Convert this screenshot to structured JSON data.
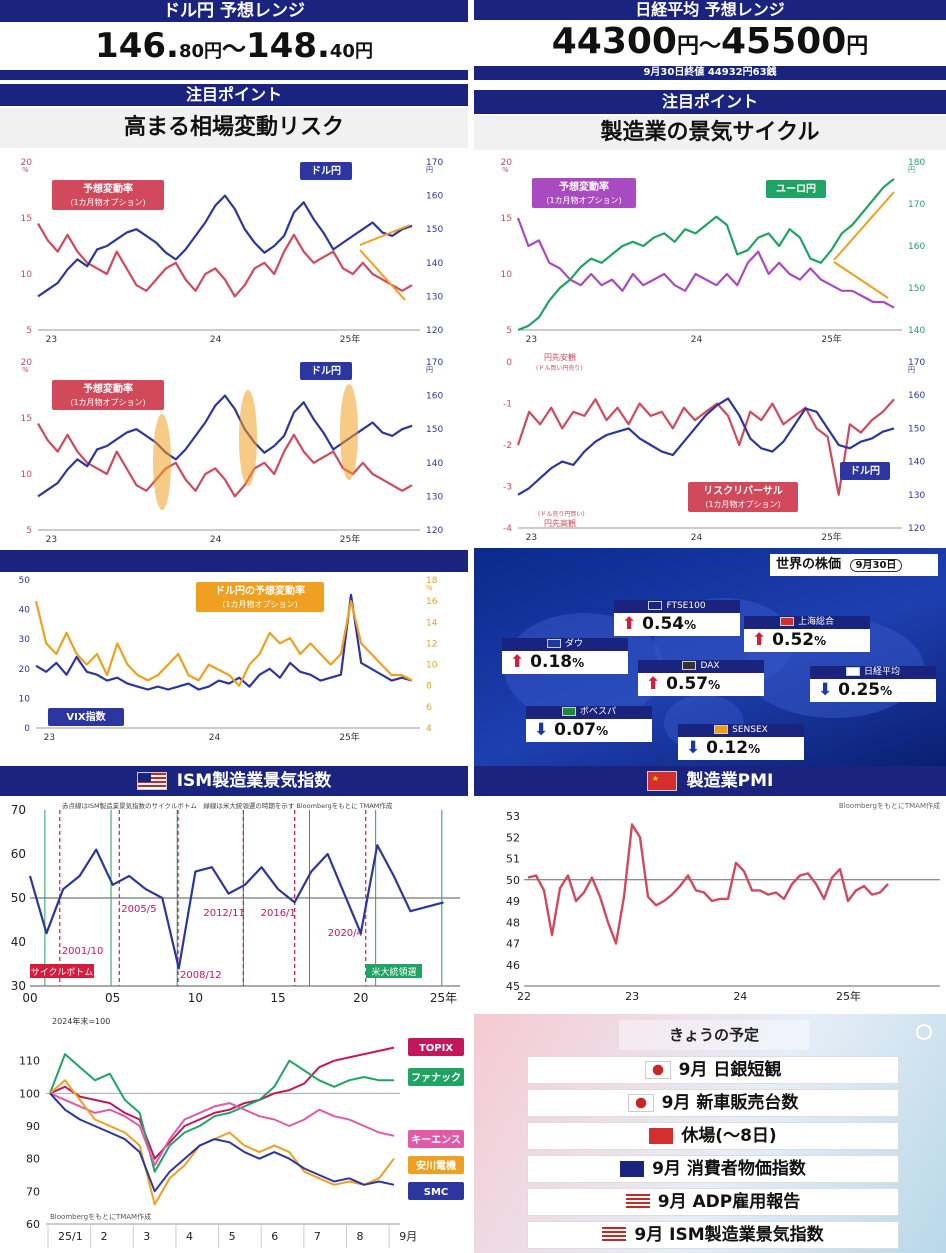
{
  "usdjpy_header": {
    "title": "ドル円 予想レンジ",
    "range_a": "146.",
    "range_a_small": "80円",
    "sep": "～",
    "range_b": "148.",
    "range_b_small": "40円",
    "point_label": "注目ポイント",
    "point": "高まる相場変動リスク"
  },
  "nikkei_header": {
    "title": "日経平均 予想レンジ",
    "range": "44300",
    "range_unit": "円～",
    "range2": "45500",
    "range2_unit": "円",
    "close_note": "9月30日終値 44932円63銭",
    "point_label": "注目ポイント",
    "point": "製造業の景気サイクル"
  },
  "colors": {
    "navy": "#1a237e",
    "red": "#d1495b",
    "blue": "#2b36a0",
    "green": "#1fa463",
    "purple": "#a84bc0",
    "orange": "#f0a020"
  },
  "chart_data": [
    {
      "type": "line",
      "id": "usdjpy_vol_1",
      "x_ticks": [
        "23",
        "24",
        "25年"
      ],
      "ylim_left": [
        5,
        20
      ],
      "left_ticks": [
        "5",
        "10",
        "15",
        "20"
      ],
      "left_unit": "%",
      "ylim_right": [
        120,
        170
      ],
      "right_ticks": [
        "120",
        "130",
        "140",
        "150",
        "160",
        "170"
      ],
      "right_unit": "円",
      "labels": {
        "red": "予想変動率",
        "red_sub": "(1カ月物オプション)",
        "blue": "ドル円"
      },
      "series": [
        {
          "name": "予想変動率",
          "axis": "left",
          "values": [
            14.5,
            13,
            12,
            13.5,
            12,
            11,
            10.5,
            10,
            12,
            10.5,
            9,
            8.5,
            9.5,
            10.5,
            11,
            9.5,
            8.5,
            10,
            10.5,
            9.5,
            8,
            9,
            10.5,
            11,
            10,
            12,
            13.5,
            12,
            11,
            11.5,
            12,
            10.5,
            10,
            11,
            10,
            9.5,
            9,
            8.5,
            9
          ]
        },
        {
          "name": "ドル円",
          "axis": "right",
          "values": [
            130,
            132,
            134,
            138,
            141,
            139,
            144,
            145,
            147,
            149,
            150,
            148,
            146,
            143,
            141,
            144,
            148,
            152,
            157,
            160,
            156,
            150,
            146,
            143,
            145,
            148,
            155,
            158,
            153,
            149,
            144,
            146,
            148,
            150,
            152,
            149,
            148,
            150,
            151
          ]
        }
      ]
    },
    {
      "type": "line",
      "id": "usdjpy_vol_2",
      "x_ticks": [
        "23",
        "24",
        "25年"
      ],
      "ylim_left": [
        5,
        20
      ],
      "left_ticks": [
        "5",
        "10",
        "15",
        "20"
      ],
      "left_unit": "%",
      "ylim_right": [
        120,
        170
      ],
      "right_ticks": [
        "120",
        "130",
        "140",
        "150",
        "160",
        "170"
      ],
      "right_unit": "円",
      "labels": {
        "red": "予想変動率",
        "red_sub": "(1カ月物オプション)",
        "blue": "ドル円"
      },
      "series": [
        {
          "name": "予想変動率",
          "axis": "left",
          "values": [
            14.5,
            13,
            12,
            13.5,
            12,
            11,
            10.5,
            10,
            12,
            10.5,
            9,
            8.5,
            9.5,
            10.5,
            11,
            9.5,
            8.5,
            10,
            10.5,
            9.5,
            8,
            9,
            10.5,
            11,
            10,
            12,
            13.5,
            12,
            11,
            11.5,
            12,
            10.5,
            10,
            11,
            10,
            9.5,
            9,
            8.5,
            9
          ]
        },
        {
          "name": "ドル円",
          "axis": "right",
          "values": [
            130,
            132,
            134,
            138,
            141,
            139,
            144,
            145,
            147,
            149,
            150,
            148,
            146,
            143,
            141,
            144,
            148,
            152,
            157,
            160,
            156,
            150,
            146,
            143,
            145,
            148,
            155,
            158,
            153,
            149,
            144,
            146,
            148,
            150,
            152,
            149,
            148,
            150,
            151
          ]
        }
      ]
    },
    {
      "type": "line",
      "id": "eurjpy_vol",
      "x_ticks": [
        "23",
        "24",
        "25年"
      ],
      "ylim_left": [
        5,
        20
      ],
      "left_ticks": [
        "5",
        "10",
        "15",
        "20"
      ],
      "left_unit": "%",
      "ylim_right": [
        140,
        180
      ],
      "right_ticks": [
        "140",
        "150",
        "160",
        "170",
        "180"
      ],
      "right_unit": "円",
      "labels": {
        "purple": "予想変動率",
        "purple_sub": "(1カ月物オプション)",
        "green": "ユーロ円"
      },
      "series": [
        {
          "name": "予想変動率",
          "axis": "left",
          "values": [
            15,
            12.5,
            13,
            11,
            10.5,
            9.5,
            9,
            10,
            9,
            9.5,
            8.5,
            10,
            9,
            9.5,
            10,
            9,
            8.5,
            10,
            9.5,
            9,
            10,
            9,
            11,
            12,
            10,
            11,
            10,
            9.5,
            10.5,
            9.5,
            9,
            8.5,
            8.5,
            8,
            7.5,
            7.5,
            7
          ]
        },
        {
          "name": "ユーロ円",
          "axis": "right",
          "values": [
            140,
            141,
            143,
            147,
            150,
            152,
            155,
            157,
            156,
            158,
            160,
            161,
            160,
            162,
            163,
            161,
            164,
            163,
            165,
            167,
            165,
            158,
            159,
            162,
            163,
            160,
            164,
            162,
            157,
            156,
            159,
            163,
            165,
            168,
            171,
            174,
            176
          ]
        }
      ]
    },
    {
      "type": "line",
      "id": "risk_reversal",
      "x_ticks": [
        "23",
        "24",
        "25年"
      ],
      "ylim_left": [
        -4,
        0
      ],
      "left_ticks": [
        "-4",
        "-3",
        "-2",
        "-1",
        "0"
      ],
      "ylim_right": [
        120,
        170
      ],
      "right_ticks": [
        "120",
        "130",
        "140",
        "150",
        "160",
        "170"
      ],
      "right_unit": "円",
      "top_note": "円先安観",
      "top_note_sub": "(ドル買い円売り)",
      "bottom_note": "円先高観",
      "bottom_note_sub": "(ドル売り円買い)",
      "labels": {
        "red": "リスクリバーサル",
        "red_sub": "(1カ月物オプション)",
        "blue": "ドル円"
      },
      "series": [
        {
          "name": "リスクリバーサル",
          "axis": "left",
          "values": [
            -2,
            -1.2,
            -1.5,
            -1.1,
            -1.6,
            -1.2,
            -1.3,
            -0.9,
            -1.4,
            -1.1,
            -1.5,
            -1.0,
            -1.3,
            -1.2,
            -1.6,
            -1.1,
            -1.4,
            -1.2,
            -1.0,
            -1.3,
            -2.0,
            -1.2,
            -1.4,
            -1.0,
            -1.5,
            -1.3,
            -1.1,
            -1.6,
            -1.8,
            -3.2,
            -1.5,
            -1.7,
            -1.4,
            -1.2,
            -0.9
          ]
        },
        {
          "name": "ドル円",
          "axis": "right",
          "values": [
            130,
            132,
            135,
            138,
            140,
            139,
            143,
            146,
            148,
            149,
            150,
            147,
            145,
            143,
            142,
            146,
            150,
            154,
            157,
            159,
            154,
            147,
            144,
            143,
            146,
            151,
            156,
            155,
            150,
            145,
            144,
            146,
            147,
            149,
            150
          ]
        }
      ]
    },
    {
      "type": "line",
      "id": "vix_vs_usdjpy",
      "x_ticks": [
        "23",
        "24",
        "25年"
      ],
      "ylim_left": [
        0,
        50
      ],
      "left_ticks": [
        "0",
        "10",
        "20",
        "30",
        "40",
        "50"
      ],
      "ylim_right": [
        4,
        18
      ],
      "right_ticks": [
        "4",
        "6",
        "8",
        "10",
        "12",
        "14",
        "16",
        "18"
      ],
      "right_unit": "%",
      "labels": {
        "orange": "ドル円の予想変動率",
        "orange_sub": "(1カ月物オプション)",
        "blue": "VIX指数"
      },
      "series": [
        {
          "name": "VIX指数",
          "axis": "left",
          "values": [
            21,
            19,
            22,
            18,
            24,
            19,
            18,
            16,
            17,
            15,
            14,
            13,
            14,
            13,
            14,
            15,
            13,
            14,
            16,
            15,
            17,
            14,
            18,
            20,
            17,
            22,
            19,
            18,
            16,
            17,
            18,
            45,
            22,
            20,
            18,
            16,
            17,
            16
          ]
        },
        {
          "name": "ドル円の予想変動率",
          "axis": "right",
          "values": [
            16,
            12,
            11,
            13,
            11,
            10,
            11,
            9,
            12,
            10,
            9,
            8.5,
            9,
            10,
            11,
            9,
            8.5,
            10,
            9.5,
            9,
            8,
            10,
            11,
            13,
            12,
            12.5,
            11,
            12,
            11,
            10,
            11,
            16,
            12,
            11,
            10,
            9,
            9,
            8.5
          ]
        }
      ]
    },
    {
      "type": "line",
      "id": "ism_pmi",
      "title": "ISM製造業景気指数",
      "note": "赤点線はISM製造業景気指数のサイクルボトム　緑線は米大統領選の時期を示す Bloombergをもとに TMAM作成",
      "x_ticks": [
        "00",
        "05",
        "10",
        "15",
        "20",
        "25年"
      ],
      "ylim": [
        30,
        70
      ],
      "y_ticks": [
        "30",
        "40",
        "50",
        "60",
        "70"
      ],
      "bottoms": [
        "2001/10",
        "2005/5",
        "2008/12",
        "2012/11",
        "2016/1",
        "2020/4"
      ],
      "bottom_tag": "サイクルボトム",
      "election_tag": "米大統領選",
      "x": [
        2000,
        2001,
        2002,
        2003,
        2004,
        2005,
        2006,
        2007,
        2008,
        2009,
        2010,
        2011,
        2012,
        2013,
        2014,
        2015,
        2016,
        2017,
        2018,
        2019,
        2020,
        2021,
        2022,
        2023,
        2024,
        2025
      ],
      "values": [
        55,
        42,
        52,
        55,
        61,
        53,
        55,
        52,
        50,
        34,
        56,
        57,
        51,
        53,
        57,
        52,
        49,
        56,
        60,
        51,
        42,
        62,
        55,
        47,
        48,
        49
      ]
    },
    {
      "type": "line",
      "id": "china_pmi",
      "title": "製造業PMI",
      "note": "BloombergをもとにTMAM作成",
      "x_ticks": [
        "22",
        "23",
        "24",
        "25年"
      ],
      "ylim": [
        45,
        53
      ],
      "y_ticks": [
        "45",
        "46",
        "47",
        "48",
        "49",
        "50",
        "51",
        "52",
        "53"
      ],
      "values": [
        50.1,
        50.2,
        49.5,
        47.4,
        49.6,
        50.2,
        49,
        49.4,
        50.1,
        49.2,
        48,
        47,
        49.2,
        52.6,
        52,
        49.2,
        48.8,
        49,
        49.3,
        49.7,
        50.2,
        49.5,
        49.4,
        49,
        49.1,
        49.1,
        50.8,
        50.4,
        49.5,
        49.5,
        49.3,
        49.4,
        49.1,
        49.8,
        50.2,
        50.3,
        49.8,
        49.1,
        50.1,
        50.5,
        49,
        49.5,
        49.7,
        49.3,
        49.4,
        49.8
      ]
    },
    {
      "type": "line",
      "id": "stocks_index",
      "note_top": "2024年末=100",
      "note": "BloombergをもとにTMAM作成",
      "x_ticks": [
        "25/1",
        "2",
        "3",
        "4",
        "5",
        "6",
        "7",
        "8",
        "9月"
      ],
      "ylim": [
        60,
        120
      ],
      "y_ticks": [
        "60",
        "70",
        "80",
        "90",
        "100",
        "110"
      ],
      "series": [
        {
          "name": "TOPIX",
          "values": [
            100,
            102,
            99,
            98,
            97,
            94,
            92,
            80,
            85,
            90,
            92,
            94,
            95,
            97,
            98,
            100,
            101,
            103,
            108,
            110,
            111,
            112,
            113,
            114
          ]
        },
        {
          "name": "ファナック",
          "values": [
            100,
            112,
            108,
            104,
            106,
            98,
            94,
            76,
            84,
            88,
            90,
            93,
            94,
            96,
            98,
            102,
            110,
            107,
            104,
            102,
            104,
            105,
            104,
            104
          ]
        },
        {
          "name": "キーエンス",
          "values": [
            100,
            98,
            96,
            94,
            95,
            93,
            90,
            78,
            86,
            92,
            94,
            96,
            97,
            95,
            93,
            92,
            90,
            92,
            95,
            93,
            92,
            90,
            88,
            87
          ]
        },
        {
          "name": "安川電機",
          "values": [
            100,
            104,
            98,
            92,
            90,
            88,
            84,
            66,
            74,
            78,
            84,
            86,
            88,
            84,
            82,
            84,
            82,
            76,
            74,
            72,
            73,
            72,
            74,
            80
          ]
        },
        {
          "name": "SMC",
          "values": [
            100,
            95,
            92,
            90,
            88,
            86,
            82,
            70,
            76,
            80,
            84,
            86,
            85,
            82,
            80,
            82,
            80,
            77,
            75,
            73,
            74,
            72,
            73,
            72
          ]
        }
      ]
    }
  ],
  "world_stocks": {
    "title": "世界の株価",
    "date": "9月30日",
    "items": [
      {
        "name": "ダウ",
        "value": "0.18",
        "dir": "up"
      },
      {
        "name": "FTSE100",
        "value": "0.54",
        "dir": "up"
      },
      {
        "name": "上海総合",
        "value": "0.52",
        "dir": "up"
      },
      {
        "name": "DAX",
        "value": "0.57",
        "dir": "up"
      },
      {
        "name": "日経平均",
        "value": "0.25",
        "dir": "down"
      },
      {
        "name": "ボベスパ",
        "value": "0.07",
        "dir": "down"
      },
      {
        "name": "SENSEX",
        "value": "0.12",
        "dir": "down"
      }
    ],
    "pct": "%"
  },
  "schedule": {
    "title": "きょうの予定",
    "items": [
      {
        "flag": "jp",
        "text": "9月 日銀短観"
      },
      {
        "flag": "jp",
        "text": "9月 新車販売台数"
      },
      {
        "flag": "cn",
        "text": "休場(～8日)"
      },
      {
        "flag": "eu",
        "text": "9月 消費者物価指数"
      },
      {
        "flag": "us",
        "text": "9月 ADP雇用報告"
      },
      {
        "flag": "us",
        "text": "9月 ISM製造業景気指数"
      }
    ]
  }
}
